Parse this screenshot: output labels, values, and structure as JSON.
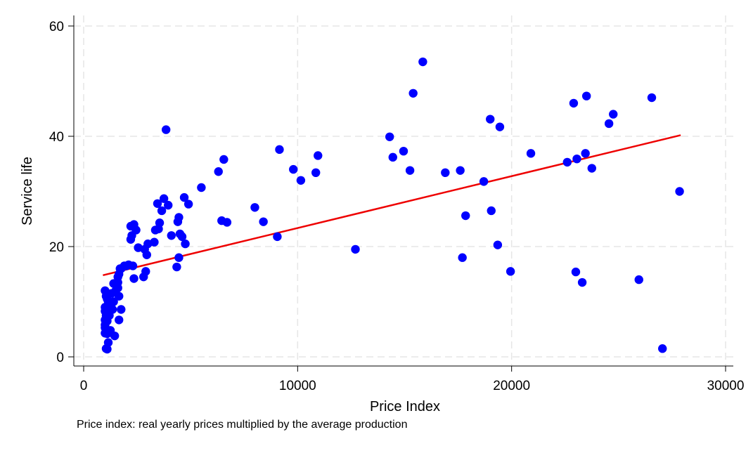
{
  "chart_data": {
    "type": "scatter",
    "xlabel": "Price Index",
    "ylabel": "Service life",
    "note": "Price index: real yearly prices multiplied by the average production",
    "xlim": [
      0,
      30000
    ],
    "ylim": [
      0,
      60
    ],
    "x_ticks": [
      0,
      10000,
      20000,
      30000
    ],
    "y_ticks": [
      0,
      20,
      40,
      60
    ],
    "grid": true,
    "marker_color": "#0000ff",
    "fit_color": "#ee0000",
    "grid_color": "#e6e6e6",
    "points": [
      [
        1000,
        12
      ],
      [
        1050,
        11
      ],
      [
        1100,
        10.5
      ],
      [
        1150,
        10
      ],
      [
        1000,
        9
      ],
      [
        1200,
        9.5
      ],
      [
        1100,
        8.5
      ],
      [
        1000,
        8.3
      ],
      [
        1050,
        7.5
      ],
      [
        1200,
        7.5
      ],
      [
        1000,
        6.7
      ],
      [
        1100,
        6.5
      ],
      [
        1000,
        5.8
      ],
      [
        1000,
        5.3
      ],
      [
        1250,
        4.8
      ],
      [
        1000,
        4.3
      ],
      [
        1100,
        4.2
      ],
      [
        1450,
        3.8
      ],
      [
        1150,
        2.6
      ],
      [
        1050,
        1.5
      ],
      [
        1100,
        1.4
      ],
      [
        1350,
        8.6
      ],
      [
        1300,
        9.7
      ],
      [
        1400,
        10
      ],
      [
        1300,
        11.5
      ],
      [
        1400,
        13.3
      ],
      [
        1500,
        12
      ],
      [
        1600,
        12.5
      ],
      [
        1650,
        11
      ],
      [
        1600,
        13.5
      ],
      [
        1600,
        14.5
      ],
      [
        1650,
        15
      ],
      [
        1700,
        16
      ],
      [
        1750,
        16
      ],
      [
        1650,
        6.7
      ],
      [
        1750,
        8.6
      ],
      [
        1900,
        16.5
      ],
      [
        2000,
        16.5
      ],
      [
        2100,
        16.7
      ],
      [
        2200,
        23.7
      ],
      [
        2250,
        22
      ],
      [
        2350,
        24
      ],
      [
        2200,
        21.3
      ],
      [
        2450,
        23
      ],
      [
        2300,
        16.5
      ],
      [
        2350,
        14.2
      ],
      [
        2550,
        19.8
      ],
      [
        2800,
        14.5
      ],
      [
        2900,
        15.5
      ],
      [
        2850,
        19.5
      ],
      [
        2950,
        18.5
      ],
      [
        3000,
        20.5
      ],
      [
        3300,
        20.8
      ],
      [
        3350,
        23
      ],
      [
        3450,
        27.8
      ],
      [
        3500,
        23.2
      ],
      [
        3550,
        24.3
      ],
      [
        3650,
        26.5
      ],
      [
        3750,
        28.7
      ],
      [
        3850,
        41.2
      ],
      [
        3950,
        27.5
      ],
      [
        4100,
        22
      ],
      [
        4350,
        16.3
      ],
      [
        4400,
        24.5
      ],
      [
        4450,
        25.3
      ],
      [
        4500,
        22.3
      ],
      [
        4450,
        18
      ],
      [
        4600,
        21.8
      ],
      [
        4750,
        20.5
      ],
      [
        4700,
        28.9
      ],
      [
        4900,
        27.7
      ],
      [
        5500,
        30.7
      ],
      [
        6300,
        33.6
      ],
      [
        6450,
        24.7
      ],
      [
        6550,
        35.8
      ],
      [
        6700,
        24.4
      ],
      [
        8000,
        27.1
      ],
      [
        8400,
        24.5
      ],
      [
        9050,
        21.8
      ],
      [
        9150,
        37.6
      ],
      [
        9800,
        34
      ],
      [
        10150,
        32
      ],
      [
        10850,
        33.4
      ],
      [
        10950,
        36.5
      ],
      [
        12700,
        19.5
      ],
      [
        14300,
        39.9
      ],
      [
        14450,
        36.2
      ],
      [
        14950,
        37.3
      ],
      [
        15250,
        33.8
      ],
      [
        15400,
        47.8
      ],
      [
        15850,
        53.5
      ],
      [
        16900,
        33.4
      ],
      [
        17600,
        33.8
      ],
      [
        17700,
        18
      ],
      [
        17850,
        25.6
      ],
      [
        18700,
        31.8
      ],
      [
        19000,
        43.1
      ],
      [
        19050,
        26.5
      ],
      [
        19350,
        20.3
      ],
      [
        19450,
        41.7
      ],
      [
        19950,
        15.5
      ],
      [
        20900,
        36.9
      ],
      [
        22600,
        35.3
      ],
      [
        22900,
        46
      ],
      [
        23000,
        15.4
      ],
      [
        23050,
        35.9
      ],
      [
        23300,
        13.5
      ],
      [
        23450,
        36.9
      ],
      [
        23500,
        47.3
      ],
      [
        23750,
        34.2
      ],
      [
        24550,
        42.3
      ],
      [
        24750,
        44
      ],
      [
        25950,
        14
      ],
      [
        26550,
        47
      ],
      [
        27050,
        1.5
      ],
      [
        27850,
        30
      ]
    ],
    "fit_line": {
      "x": [
        900,
        27900
      ],
      "y": [
        14.8,
        40.2
      ]
    }
  }
}
